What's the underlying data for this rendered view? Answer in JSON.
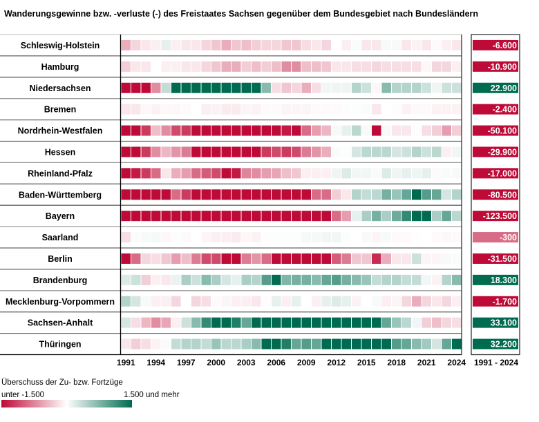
{
  "chart_data": {
    "type": "heatmap",
    "title": "Wanderungsgewinne bzw. -verluste (-) des Freistaates Sachsen gegenüber dem Bundesgebiet nach Bundesländern",
    "x": [
      1991,
      1992,
      1993,
      1994,
      1995,
      1996,
      1997,
      1998,
      1999,
      2000,
      2001,
      2002,
      2003,
      2004,
      2005,
      2006,
      2007,
      2008,
      2009,
      2010,
      2011,
      2012,
      2013,
      2014,
      2015,
      2016,
      2017,
      2018,
      2019,
      2020,
      2021,
      2022,
      2023,
      2024
    ],
    "x_tick_labels": [
      "1991",
      "1994",
      "1997",
      "2000",
      "2003",
      "2006",
      "2009",
      "2012",
      "2015",
      "2018",
      "2021",
      "2024"
    ],
    "color_range": [
      -1500,
      1500
    ],
    "colors": {
      "negative": "#BE0A36",
      "zero": "#FFFFFF",
      "positive": "#006B50"
    },
    "legend": {
      "title": "Überschuss der Zu- bzw. Fortzüge",
      "min_label": "unter -1.500",
      "max_label": "1.500 und mehr"
    },
    "total_header": "1991 - 2024",
    "rows": [
      {
        "name": "Schleswig-Holstein",
        "total": "-6.600",
        "values": [
          -500,
          -250,
          -150,
          -100,
          150,
          -100,
          -150,
          -150,
          -250,
          -350,
          -500,
          -350,
          -400,
          -300,
          -250,
          -250,
          -350,
          -350,
          -200,
          -150,
          -250,
          0,
          -100,
          30,
          -150,
          -150,
          50,
          50,
          -150,
          -80,
          -150,
          -30,
          -100,
          -150
        ]
      },
      {
        "name": "Hamburg",
        "total": "-10.900",
        "values": [
          -300,
          -150,
          -150,
          0,
          -100,
          -100,
          -150,
          -150,
          -250,
          -350,
          -500,
          -500,
          -300,
          -400,
          -300,
          -400,
          -700,
          -700,
          -400,
          -400,
          -350,
          -150,
          -150,
          -200,
          -200,
          -250,
          -200,
          -200,
          -200,
          -200,
          -50,
          -250,
          -250,
          -100
        ]
      },
      {
        "name": "Niedersachsen",
        "total": "22.900",
        "values": [
          -1500,
          -1500,
          -1500,
          -700,
          350,
          1500,
          1500,
          1500,
          1500,
          1500,
          1500,
          1500,
          1500,
          1500,
          700,
          -200,
          -350,
          -250,
          -500,
          -200,
          80,
          100,
          100,
          450,
          300,
          -50,
          700,
          450,
          450,
          450,
          300,
          100,
          300,
          300
        ]
      },
      {
        "name": "Bremen",
        "total": "-2.400",
        "values": [
          -150,
          -150,
          -50,
          -80,
          -50,
          -50,
          -30,
          0,
          -100,
          -80,
          -120,
          -120,
          -60,
          -80,
          -30,
          -30,
          -60,
          -60,
          -60,
          -30,
          -30,
          -30,
          20,
          20,
          30,
          -150,
          0,
          -20,
          -80,
          -40,
          -30,
          -80,
          -80,
          -80
        ]
      },
      {
        "name": "Nordrhein-Westfalen",
        "total": "-50.100",
        "values": [
          -1500,
          -1500,
          -1200,
          -400,
          -700,
          -1100,
          -1200,
          -1500,
          -1500,
          -1500,
          -1500,
          -1500,
          -1500,
          -1500,
          -1500,
          -1500,
          -1400,
          -1500,
          -900,
          -600,
          -450,
          50,
          150,
          400,
          50,
          -1500,
          50,
          -150,
          -150,
          -20,
          -200,
          -300,
          -600,
          -300
        ]
      },
      {
        "name": "Hessen",
        "total": "-29.900",
        "values": [
          -1500,
          -1500,
          -1200,
          -700,
          -450,
          -650,
          -800,
          -1500,
          -1500,
          -1500,
          -1500,
          -1500,
          -1500,
          -1500,
          -1200,
          -1100,
          -1200,
          -1100,
          -800,
          -650,
          -500,
          30,
          20,
          250,
          400,
          400,
          400,
          250,
          300,
          450,
          300,
          400,
          -100,
          80
        ]
      },
      {
        "name": "Rheinland-Pfalz",
        "total": "-17.000",
        "values": [
          -1500,
          -1400,
          -1200,
          -900,
          -150,
          -500,
          -600,
          -900,
          -1000,
          -1100,
          -1500,
          -1400,
          -750,
          -700,
          -600,
          -550,
          -400,
          -350,
          -100,
          -100,
          -100,
          100,
          200,
          80,
          80,
          40,
          200,
          100,
          150,
          100,
          150,
          -30,
          40,
          50
        ]
      },
      {
        "name": "Baden-Württemberg",
        "total": "-80.500",
        "values": [
          -1500,
          -1500,
          -1500,
          -1500,
          -1500,
          -900,
          -1200,
          -1500,
          -1500,
          -1500,
          -1500,
          -1500,
          -1500,
          -1500,
          -1500,
          -1500,
          -1500,
          -1500,
          -1500,
          -900,
          -900,
          -300,
          -150,
          450,
          350,
          400,
          800,
          600,
          900,
          1500,
          1000,
          900,
          250,
          450
        ]
      },
      {
        "name": "Bayern",
        "total": "-123.500",
        "values": [
          -1500,
          -1500,
          -1500,
          -1500,
          -1500,
          -1500,
          -1500,
          -1500,
          -1500,
          -1500,
          -1500,
          -1500,
          -1500,
          -1500,
          -1500,
          -1500,
          -1500,
          -1500,
          -1500,
          -1500,
          -1500,
          -900,
          -600,
          150,
          500,
          800,
          500,
          850,
          1200,
          1500,
          1500,
          500,
          900,
          400
        ]
      },
      {
        "name": "Saarland",
        "total": "-300",
        "values": [
          -200,
          30,
          50,
          60,
          -50,
          20,
          -30,
          0,
          -60,
          -100,
          -100,
          -120,
          -50,
          -80,
          -20,
          20,
          20,
          20,
          60,
          60,
          80,
          80,
          20,
          0,
          50,
          -60,
          50,
          -30,
          -30,
          10,
          0,
          -30,
          -50,
          -30
        ]
      },
      {
        "name": "Berlin",
        "total": "-31.500",
        "values": [
          -1500,
          -900,
          -250,
          -200,
          -350,
          -600,
          -400,
          -800,
          -1100,
          -1100,
          -1500,
          -1500,
          -800,
          -650,
          -900,
          -1500,
          -1500,
          -1500,
          -1500,
          -1500,
          -1500,
          -1000,
          -800,
          -350,
          -350,
          -1300,
          -500,
          -150,
          -150,
          300,
          -60,
          -60,
          50,
          30
        ]
      },
      {
        "name": "Brandenburg",
        "total": "18.300",
        "values": [
          200,
          300,
          -300,
          -100,
          -150,
          120,
          500,
          300,
          700,
          500,
          250,
          150,
          500,
          450,
          1000,
          1500,
          750,
          800,
          800,
          700,
          900,
          1000,
          800,
          700,
          600,
          350,
          450,
          450,
          350,
          350,
          80,
          -80,
          450,
          700
        ]
      },
      {
        "name": "Mecklenburg-Vorpommern",
        "total": "-1.700",
        "values": [
          450,
          250,
          50,
          -100,
          -100,
          -250,
          0,
          -250,
          -200,
          -30,
          -60,
          -100,
          -100,
          -150,
          -20,
          150,
          -100,
          150,
          0,
          -100,
          150,
          200,
          150,
          -80,
          0,
          50,
          -100,
          -60,
          -250,
          -500,
          -250,
          -150,
          -250,
          -100
        ]
      },
      {
        "name": "Sachsen-Anhalt",
        "total": "33.100",
        "values": [
          250,
          -200,
          -450,
          -700,
          -550,
          -100,
          300,
          700,
          1200,
          1500,
          1500,
          1300,
          900,
          1500,
          1500,
          1500,
          1500,
          1500,
          1500,
          1500,
          1500,
          1500,
          1500,
          1500,
          1500,
          1500,
          900,
          600,
          400,
          80,
          -300,
          -400,
          -250,
          -200
        ]
      },
      {
        "name": "Thüringen",
        "total": "32.200",
        "values": [
          -150,
          -300,
          -200,
          -80,
          30,
          350,
          450,
          450,
          350,
          600,
          400,
          400,
          500,
          700,
          1500,
          1500,
          1300,
          900,
          1000,
          900,
          1500,
          1500,
          1500,
          1500,
          1500,
          1500,
          1500,
          1000,
          900,
          700,
          550,
          250,
          900,
          1500
        ]
      }
    ]
  }
}
